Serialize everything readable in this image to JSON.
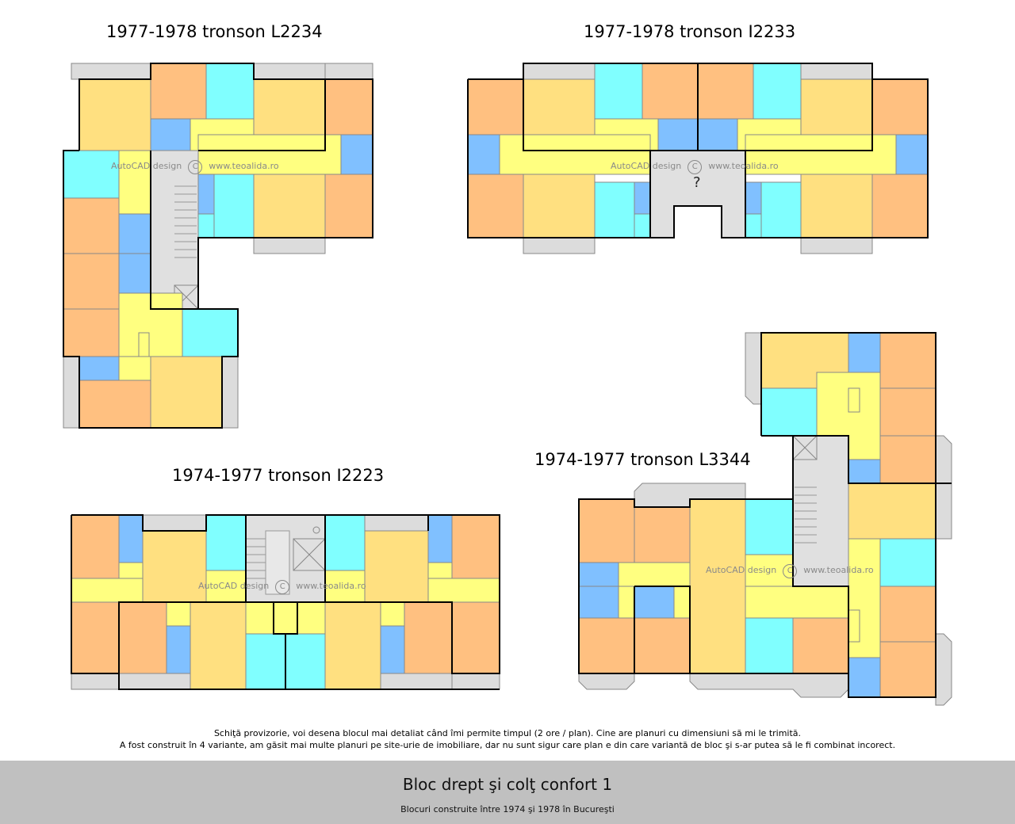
{
  "plans": [
    {
      "title": "1977-1978 tronson L2234"
    },
    {
      "title": "1977-1978 tronson I2233"
    },
    {
      "title": "1974-1977 tronson I2223"
    },
    {
      "title": "1974-1977 tronson L3344"
    }
  ],
  "watermark": {
    "left": "AutoCAD design",
    "symbol": "C",
    "right": "www.teoalida.ro"
  },
  "unknown_marker": "?",
  "notes": [
    "Schiţă provizorie, voi desena blocul mai detaliat când îmi permite timpul (2 ore / plan). Cine are planuri cu dimensiuni să mi le trimită.",
    "A fost construit în 4 variante, am găsit mai multe planuri pe site-urie de imobiliare, dar nu sunt sigur care plan e din care variantă de bloc şi s-ar putea să le fi combinat incorect."
  ],
  "footer": {
    "title": "Bloc drept şi colţ confort 1",
    "subtitle": "Blocuri construite între 1974 şi 1978 în Bucureşti"
  },
  "colors": {
    "orange": "#ffc080",
    "yellow_room": "#ffe080",
    "cyan": "#80ffff",
    "blue": "#80c0ff",
    "hall": "#ffff80",
    "balcony": "#dcdcdc",
    "stair": "#e0e0e0"
  }
}
